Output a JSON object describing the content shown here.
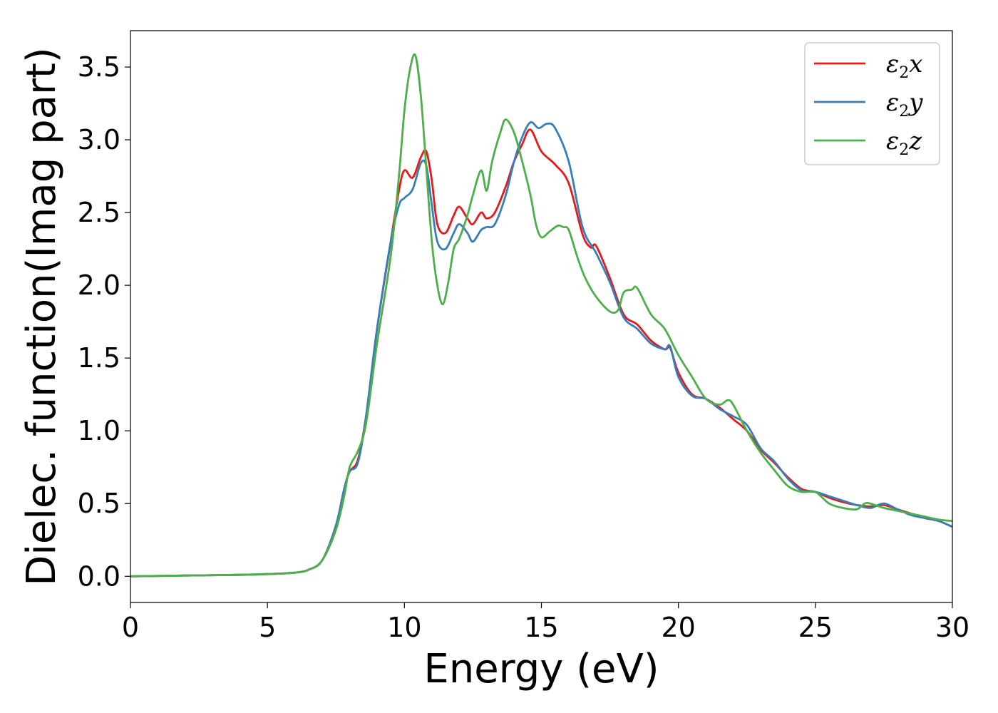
{
  "chart_data": {
    "type": "line",
    "xlabel": "Energy (eV)",
    "ylabel": "Dielec. function(Imag part)",
    "xlim": [
      0,
      30
    ],
    "ylim": [
      -0.18,
      3.75
    ],
    "xticks": [
      0,
      5,
      10,
      15,
      20,
      25,
      30
    ],
    "yticks": [
      0.0,
      0.5,
      1.0,
      1.5,
      2.0,
      2.5,
      3.0,
      3.5
    ],
    "xtick_labels": [
      "0",
      "5",
      "10",
      "15",
      "20",
      "25",
      "30"
    ],
    "ytick_labels": [
      "0.0",
      "0.5",
      "1.0",
      "1.5",
      "2.0",
      "2.5",
      "3.0",
      "3.5"
    ],
    "grid": false,
    "legend_position": "top-right",
    "series": [
      {
        "name_symbol": "ε",
        "name_sub": "2",
        "name_suffix": "x",
        "color": "#e41a1c",
        "x": [
          0,
          2,
          4,
          5,
          6,
          6.5,
          7,
          7.5,
          7.8,
          8,
          8.3,
          8.6,
          9,
          9.5,
          9.8,
          10,
          10.3,
          10.6,
          10.8,
          11,
          11.2,
          11.5,
          11.8,
          12,
          12.3,
          12.5,
          12.8,
          13,
          13.3,
          13.7,
          14,
          14.3,
          14.6,
          15,
          15.5,
          16,
          16.5,
          16.8,
          17,
          17.5,
          18,
          18.5,
          19,
          19.5,
          19.7,
          20,
          20.5,
          21,
          21.5,
          22,
          22.5,
          23,
          23.5,
          24,
          24.5,
          25,
          25.5,
          26,
          26.5,
          27,
          27.5,
          28,
          28.5,
          29,
          29.5,
          30
        ],
        "y": [
          0,
          0.005,
          0.01,
          0.015,
          0.025,
          0.045,
          0.11,
          0.35,
          0.6,
          0.72,
          0.8,
          1.1,
          1.7,
          2.3,
          2.65,
          2.79,
          2.74,
          2.88,
          2.92,
          2.72,
          2.42,
          2.36,
          2.48,
          2.54,
          2.46,
          2.42,
          2.5,
          2.46,
          2.5,
          2.68,
          2.85,
          2.97,
          3.07,
          2.92,
          2.83,
          2.7,
          2.35,
          2.26,
          2.27,
          2.05,
          1.8,
          1.73,
          1.62,
          1.56,
          1.57,
          1.4,
          1.25,
          1.22,
          1.16,
          1.08,
          1.0,
          0.87,
          0.78,
          0.68,
          0.6,
          0.58,
          0.54,
          0.51,
          0.49,
          0.48,
          0.49,
          0.46,
          0.43,
          0.4,
          0.38,
          0.34
        ]
      },
      {
        "name_symbol": "ε",
        "name_sub": "2",
        "name_suffix": "y",
        "color": "#377eb8",
        "x": [
          0,
          2,
          4,
          5,
          6,
          6.5,
          7,
          7.5,
          7.8,
          8,
          8.3,
          8.6,
          9,
          9.5,
          9.8,
          10,
          10.3,
          10.6,
          10.8,
          11,
          11.2,
          11.5,
          11.8,
          12,
          12.3,
          12.5,
          12.8,
          13,
          13.3,
          13.7,
          14,
          14.3,
          14.6,
          14.9,
          15.2,
          15.5,
          16,
          16.5,
          17,
          17.5,
          18,
          18.5,
          19,
          19.5,
          19.7,
          20,
          20.5,
          21,
          21.5,
          22,
          22.5,
          23,
          23.5,
          24,
          24.5,
          25,
          25.5,
          26,
          26.5,
          27,
          27.5,
          28,
          28.5,
          29,
          29.5,
          30
        ],
        "y": [
          0,
          0.005,
          0.01,
          0.015,
          0.025,
          0.045,
          0.11,
          0.35,
          0.6,
          0.72,
          0.78,
          1.1,
          1.7,
          2.3,
          2.55,
          2.6,
          2.66,
          2.84,
          2.82,
          2.55,
          2.3,
          2.25,
          2.36,
          2.42,
          2.36,
          2.3,
          2.38,
          2.4,
          2.42,
          2.62,
          2.85,
          3.02,
          3.12,
          3.08,
          3.11,
          3.08,
          2.85,
          2.4,
          2.22,
          2.02,
          1.78,
          1.7,
          1.6,
          1.56,
          1.58,
          1.37,
          1.24,
          1.22,
          1.15,
          1.1,
          1.04,
          0.88,
          0.79,
          0.67,
          0.59,
          0.58,
          0.55,
          0.52,
          0.49,
          0.47,
          0.5,
          0.46,
          0.42,
          0.4,
          0.38,
          0.34
        ]
      },
      {
        "name_symbol": "ε",
        "name_sub": "2",
        "name_suffix": "z",
        "color": "#4daf4a",
        "x": [
          0,
          2,
          4,
          5,
          6,
          6.5,
          7,
          7.5,
          7.8,
          8,
          8.3,
          8.6,
          9,
          9.5,
          9.8,
          10,
          10.2,
          10.4,
          10.6,
          10.8,
          11,
          11.2,
          11.4,
          11.6,
          11.8,
          12,
          12.3,
          12.5,
          12.8,
          13,
          13.2,
          13.5,
          13.7,
          14,
          14.3,
          14.6,
          14.8,
          15,
          15.3,
          15.6,
          15.8,
          16,
          16.3,
          16.6,
          17,
          17.5,
          17.8,
          18,
          18.3,
          18.5,
          19,
          19.5,
          20,
          20.5,
          21,
          21.5,
          21.8,
          22,
          22.5,
          23,
          23.5,
          24,
          24.5,
          25,
          25.5,
          26,
          26.5,
          26.8,
          27,
          27.5,
          28,
          28.5,
          29,
          29.5,
          30
        ],
        "y": [
          0,
          0.005,
          0.01,
          0.015,
          0.025,
          0.045,
          0.11,
          0.32,
          0.55,
          0.75,
          0.86,
          1.05,
          1.6,
          2.2,
          2.75,
          3.2,
          3.48,
          3.58,
          3.3,
          2.8,
          2.3,
          2.0,
          1.87,
          2.02,
          2.25,
          2.32,
          2.48,
          2.62,
          2.79,
          2.65,
          2.85,
          3.05,
          3.14,
          3.05,
          2.85,
          2.62,
          2.42,
          2.33,
          2.37,
          2.41,
          2.4,
          2.38,
          2.2,
          2.05,
          1.92,
          1.82,
          1.83,
          1.95,
          1.97,
          1.98,
          1.8,
          1.7,
          1.52,
          1.37,
          1.22,
          1.18,
          1.21,
          1.18,
          1.0,
          0.85,
          0.73,
          0.62,
          0.58,
          0.58,
          0.5,
          0.47,
          0.46,
          0.5,
          0.5,
          0.47,
          0.45,
          0.43,
          0.41,
          0.39,
          0.38
        ]
      }
    ]
  }
}
